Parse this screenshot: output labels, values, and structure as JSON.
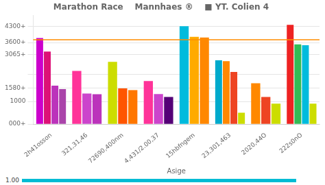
{
  "chart_data": {
    "type": "bar",
    "title": "Marathon Race    Mannhaes ®    ■ YT. Colien 4",
    "xlabel": "Asige",
    "categories": [
      "2h41osson",
      "321,31,46",
      "72690,400nm",
      "4,431/2.00,37",
      "15hbfngem",
      "23,301,463",
      "2020,44O",
      "222s0nO"
    ],
    "values": [
      [
        3800,
        3200,
        1700,
        1550
      ],
      [
        2350,
        1350,
        1320
      ],
      [
        2750,
        1580,
        1500
      ],
      [
        1900,
        1330,
        1200
      ],
      [
        4320,
        3850,
        3820
      ],
      [
        2820,
        2780,
        2300,
        500
      ],
      [
        1800,
        1200,
        900
      ],
      [
        4380,
        3520,
        3480,
        900
      ]
    ],
    "colors": [
      [
        "#cc00cc",
        "#dd1177",
        "#bb33bb",
        "#aa44aa"
      ],
      [
        "#ff3399",
        "#cc44cc",
        "#bb33bb"
      ],
      [
        "#ccdd00",
        "#ff5500",
        "#ff7700"
      ],
      [
        "#ff3399",
        "#cc44cc",
        "#550077"
      ],
      [
        "#00bbdd",
        "#ffaa00",
        "#ff8800"
      ],
      [
        "#00aacc",
        "#ff8800",
        "#ee4422",
        "#ccdd00"
      ],
      [
        "#ff8800",
        "#ee4422",
        "#ccdd00"
      ],
      [
        "#ee2222",
        "#33bb55",
        "#00bbdd",
        "#ccdd00"
      ]
    ],
    "ylim": [
      0,
      4800
    ],
    "yticks": [
      {
        "value": 0,
        "label": "000+"
      },
      1000,
      {
        "value": 1580,
        "label": "1580+"
      },
      {
        "value": 2200,
        "label": ""
      },
      {
        "value": 3065,
        "label": "3065+"
      },
      {
        "value": 3600,
        "label": "3600+"
      },
      {
        "value": 4300,
        "label": "4300+"
      }
    ],
    "grid": true,
    "annotations": [
      {
        "type": "hline",
        "y": 3720,
        "color": "#ff8c00"
      },
      {
        "type": "text",
        "text": "1.00"
      }
    ]
  }
}
